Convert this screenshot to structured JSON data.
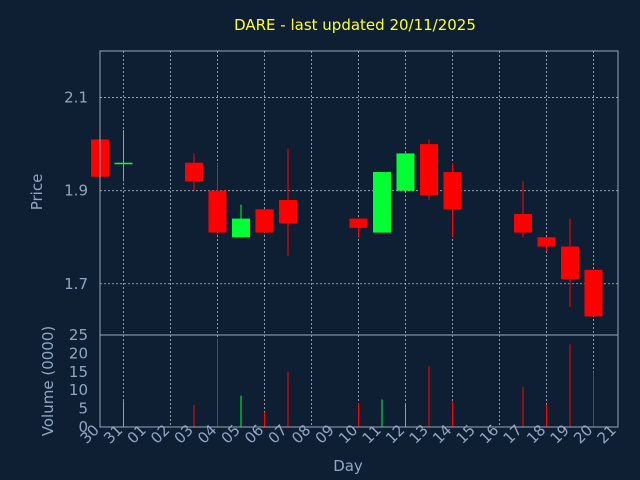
{
  "chart_data": {
    "type": "candlestick",
    "title": "DARE - last updated 20/11/2025",
    "xlabel": "Day",
    "price_panel": {
      "ylabel": "Price",
      "ylim": [
        1.59,
        2.2
      ],
      "ticks": [
        1.7,
        1.9,
        2.1
      ],
      "tick_labels": [
        "1.7",
        "1.9",
        "2.1"
      ]
    },
    "volume_panel": {
      "ylabel": "Volume (0000)",
      "ylim": [
        0,
        25
      ],
      "ticks": [
        0,
        5,
        10,
        15,
        20,
        25
      ],
      "tick_labels": [
        "0",
        "5",
        "10",
        "15",
        "20",
        "25"
      ]
    },
    "x_tick_labels": [
      "30",
      "31",
      "01",
      "02",
      "03",
      "04",
      "05",
      "06",
      "07",
      "08",
      "09",
      "10",
      "11",
      "12",
      "13",
      "14",
      "15",
      "16",
      "17",
      "18",
      "19",
      "20",
      "21"
    ],
    "grid": true,
    "colors": {
      "up": "#00ff33",
      "down": "#ff0000",
      "background": "#0f1f33",
      "title": "#ffff33",
      "axis_text": "#8fa7c2"
    },
    "candles": [
      {
        "day": "30",
        "open": 2.01,
        "high": 2.01,
        "low": 1.93,
        "close": 1.93,
        "volume": 0
      },
      {
        "day": "31",
        "open": 1.96,
        "high": 2.03,
        "low": 1.92,
        "close": 1.96,
        "volume": 7
      },
      {
        "day": "03",
        "open": 1.96,
        "high": 1.98,
        "low": 1.9,
        "close": 1.92,
        "volume": 6
      },
      {
        "day": "04",
        "open": 1.9,
        "high": 1.96,
        "low": 1.81,
        "close": 1.81,
        "volume": 24
      },
      {
        "day": "05",
        "open": 1.8,
        "high": 1.87,
        "low": 1.8,
        "close": 1.84,
        "volume": 8.5
      },
      {
        "day": "06",
        "open": 1.86,
        "high": 1.86,
        "low": 1.81,
        "close": 1.81,
        "volume": 4
      },
      {
        "day": "07",
        "open": 1.88,
        "high": 1.99,
        "low": 1.76,
        "close": 1.83,
        "volume": 15
      },
      {
        "day": "10",
        "open": 1.84,
        "high": 1.84,
        "low": 1.8,
        "close": 1.82,
        "volume": 6.5
      },
      {
        "day": "11",
        "open": 1.81,
        "high": 1.94,
        "low": 1.81,
        "close": 1.94,
        "volume": 7.5
      },
      {
        "day": "12",
        "open": 1.9,
        "high": 1.98,
        "low": 1.9,
        "close": 1.98,
        "volume": 6
      },
      {
        "day": "13",
        "open": 2.0,
        "high": 2.01,
        "low": 1.88,
        "close": 1.89,
        "volume": 16.5
      },
      {
        "day": "14",
        "open": 1.94,
        "high": 1.96,
        "low": 1.8,
        "close": 1.86,
        "volume": 7
      },
      {
        "day": "17",
        "open": 1.85,
        "high": 1.92,
        "low": 1.8,
        "close": 1.81,
        "volume": 11
      },
      {
        "day": "18",
        "open": 1.8,
        "high": 1.8,
        "low": 1.77,
        "close": 1.78,
        "volume": 6
      },
      {
        "day": "19",
        "open": 1.78,
        "high": 1.84,
        "low": 1.65,
        "close": 1.71,
        "volume": 22.5
      },
      {
        "day": "20",
        "open": 1.73,
        "high": 1.73,
        "low": 1.63,
        "close": 1.63,
        "volume": 15
      }
    ]
  }
}
